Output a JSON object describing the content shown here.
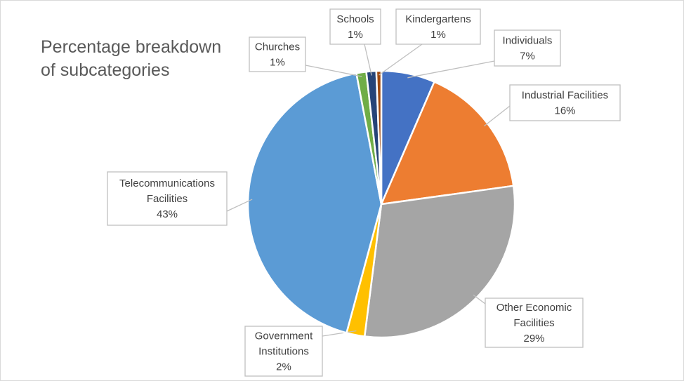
{
  "chart_data": {
    "type": "pie",
    "title": "Percentage breakdown of subcategories",
    "title_lines": [
      "Percentage breakdown",
      "of subcategories"
    ],
    "start_angle_deg": 0,
    "direction": "clockwise",
    "slices": [
      {
        "name": "Individuals",
        "lines": [
          "Individuals"
        ],
        "value": 6.5,
        "label": "7%",
        "color": "#4472C4"
      },
      {
        "name": "Industrial Facilities",
        "lines": [
          "Industrial Facilities"
        ],
        "value": 16.3,
        "label": "16%",
        "color": "#ED7D31"
      },
      {
        "name": "Other Economic Facilities",
        "lines": [
          "Other Economic",
          "Facilities"
        ],
        "value": 29.2,
        "label": "29%",
        "color": "#A5A5A5"
      },
      {
        "name": "Government Institutions",
        "lines": [
          "Government",
          "Institutions"
        ],
        "value": 2.2,
        "label": "2%",
        "color": "#FFC000"
      },
      {
        "name": "Telecommunications Facilities",
        "lines": [
          "Telecommunications",
          "Facilities"
        ],
        "value": 42.8,
        "label": "43%",
        "color": "#5B9BD5"
      },
      {
        "name": "Churches",
        "lines": [
          "Churches"
        ],
        "value": 1.2,
        "label": "1%",
        "color": "#70AD47"
      },
      {
        "name": "Schools",
        "lines": [
          "Schools"
        ],
        "value": 1.2,
        "label": "1%",
        "color": "#264478"
      },
      {
        "name": "Kindergartens",
        "lines": [
          "Kindergartens"
        ],
        "value": 0.6,
        "label": "1%",
        "color": "#9E480E"
      }
    ]
  }
}
